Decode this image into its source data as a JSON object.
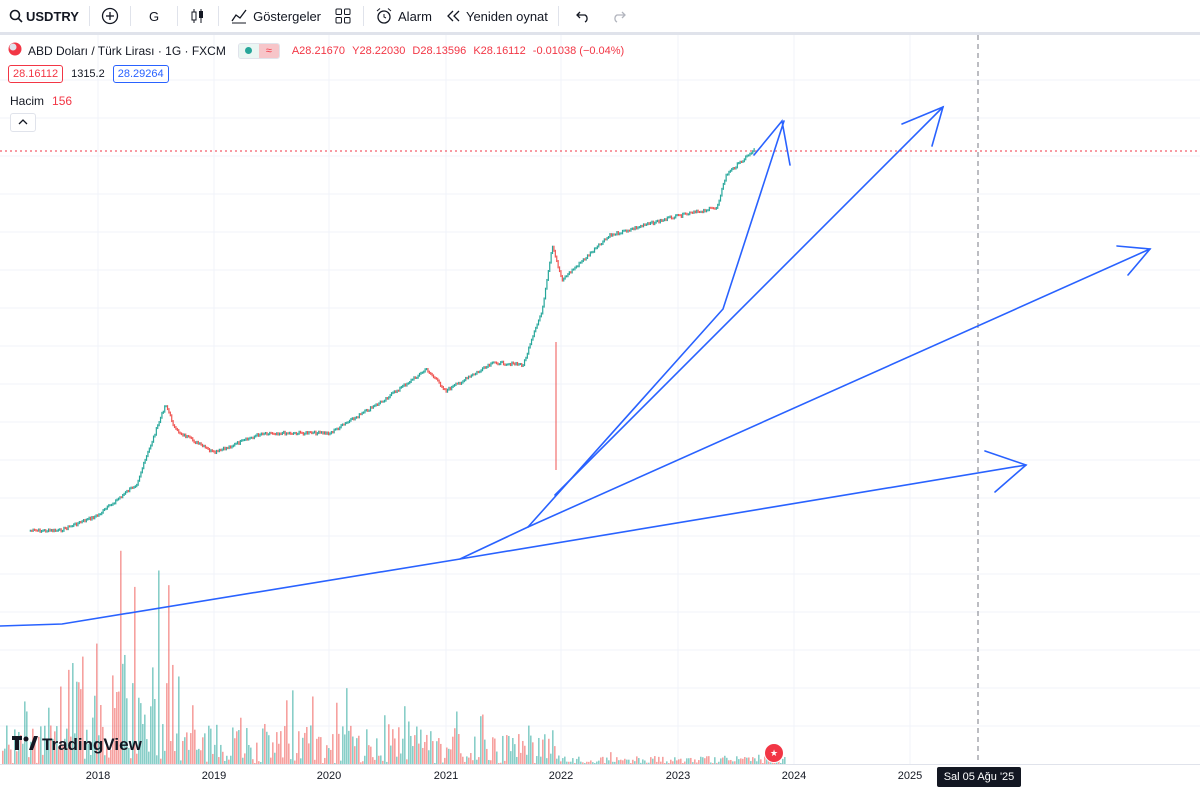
{
  "toolbar": {
    "symbol": "USDTRY",
    "interval": "G",
    "indicators": "Göstergeler",
    "alarm": "Alarm",
    "replay": "Yeniden oynat"
  },
  "legend": {
    "title": "ABD Doları / Türk Lirası · 1G · FXCM",
    "open_label": "A",
    "open": "28.21670",
    "high_label": "Y",
    "high": "28.22030",
    "low_label": "D",
    "low": "28.13596",
    "close_label": "K",
    "close": "28.16112",
    "change": "-0.01038 (−0.04%)",
    "bid": "28.16112",
    "spread": "1315.2",
    "ask": "28.29264"
  },
  "volume": {
    "label": "Hacim",
    "value": "156"
  },
  "branding": {
    "name": "TradingView"
  },
  "xaxis": {
    "ticks": [
      "2018",
      "2019",
      "2020",
      "2021",
      "2022",
      "2023",
      "2024",
      "2025"
    ],
    "cursor_label": "Sal 05 Ağu '25"
  },
  "colors": {
    "up": "#26a69a",
    "down": "#ef5350",
    "drawing": "#2962ff",
    "price_line": "#f23645"
  },
  "chart_data": {
    "type": "line",
    "title": "ABD Doları / Türk Lirası · 1G · FXCM",
    "xlabel": "",
    "ylabel": "",
    "x": [
      "2017-06",
      "2017-09",
      "2018-01",
      "2018-05",
      "2018-08",
      "2018-09",
      "2019-01",
      "2019-06",
      "2020-01",
      "2020-06",
      "2020-11",
      "2021-01",
      "2021-06",
      "2021-09",
      "2021-11",
      "2021-12",
      "2022-01",
      "2022-06",
      "2022-12",
      "2023-05",
      "2023-06",
      "2023-09"
    ],
    "series": [
      {
        "values": [
          3.5,
          3.5,
          3.8,
          4.5,
          6.9,
          6.0,
          5.3,
          5.9,
          5.9,
          6.9,
          8.3,
          7.4,
          8.6,
          8.5,
          11.5,
          16.0,
          13.4,
          17.0,
          18.6,
          19.7,
          23.5,
          27.0
        ]
      }
    ]
  }
}
